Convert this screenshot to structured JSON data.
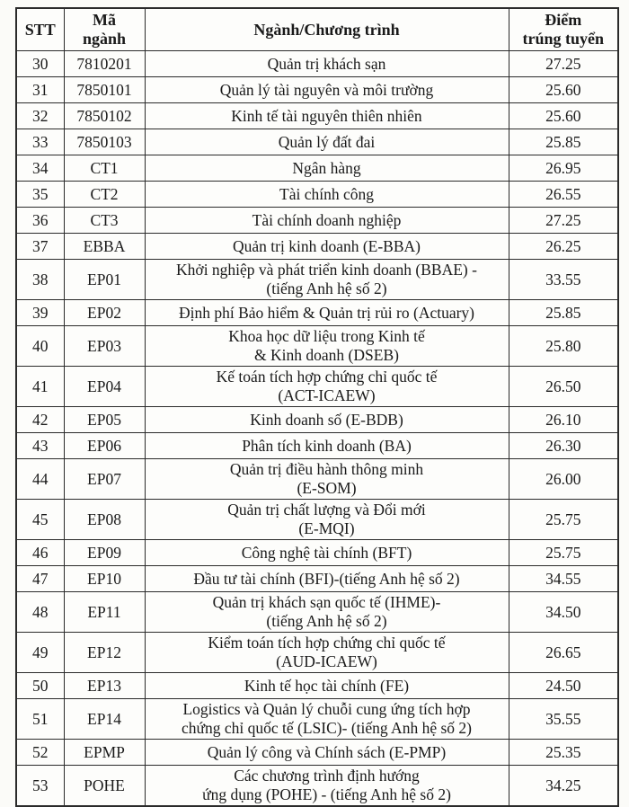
{
  "document": {
    "kind": "scanned admission scores table",
    "colors": {
      "text": "#1a1a1a",
      "border": "#2b2b2b",
      "paper": "#fbfbf8"
    }
  },
  "table": {
    "header": {
      "stt": "STT",
      "code": "Mã\nngành",
      "program": "Ngành/Chương trình",
      "score": "Điểm\ntrúng tuyển"
    },
    "rows": [
      {
        "stt": "30",
        "code": "7810201",
        "program": "Quản trị khách sạn",
        "score": "27.25"
      },
      {
        "stt": "31",
        "code": "7850101",
        "program": "Quản lý tài nguyên và môi trường",
        "score": "25.60"
      },
      {
        "stt": "32",
        "code": "7850102",
        "program": "Kinh tế tài nguyên thiên nhiên",
        "score": "25.60"
      },
      {
        "stt": "33",
        "code": "7850103",
        "program": "Quản lý đất đai",
        "score": "25.85"
      },
      {
        "stt": "34",
        "code": "CT1",
        "program": "Ngân hàng",
        "score": "26.95"
      },
      {
        "stt": "35",
        "code": "CT2",
        "program": "Tài chính công",
        "score": "26.55"
      },
      {
        "stt": "36",
        "code": "CT3",
        "program": "Tài chính doanh nghiệp",
        "score": "27.25"
      },
      {
        "stt": "37",
        "code": "EBBA",
        "program": "Quản trị kinh doanh (E-BBA)",
        "score": "26.25"
      },
      {
        "stt": "38",
        "code": "EP01",
        "program": "Khởi nghiệp và phát triển kinh doanh (BBAE) -\n(tiếng Anh hệ số 2)",
        "score": "33.55"
      },
      {
        "stt": "39",
        "code": "EP02",
        "program": "Định phí Bảo hiểm & Quản trị rủi ro (Actuary)",
        "score": "25.85"
      },
      {
        "stt": "40",
        "code": "EP03",
        "program": "Khoa học dữ liệu trong Kinh tế\n& Kinh doanh (DSEB)",
        "score": "25.80"
      },
      {
        "stt": "41",
        "code": "EP04",
        "program": "Kế toán tích hợp chứng chỉ quốc tế\n(ACT-ICAEW)",
        "score": "26.50"
      },
      {
        "stt": "42",
        "code": "EP05",
        "program": "Kinh doanh số (E-BDB)",
        "score": "26.10"
      },
      {
        "stt": "43",
        "code": "EP06",
        "program": "Phân tích kinh doanh (BA)",
        "score": "26.30"
      },
      {
        "stt": "44",
        "code": "EP07",
        "program": "Quản trị điều hành thông minh\n(E-SOM)",
        "score": "26.00"
      },
      {
        "stt": "45",
        "code": "EP08",
        "program": "Quản trị chất lượng và Đổi mới\n(E-MQI)",
        "score": "25.75"
      },
      {
        "stt": "46",
        "code": "EP09",
        "program": "Công nghệ tài chính (BFT)",
        "score": "25.75"
      },
      {
        "stt": "47",
        "code": "EP10",
        "program": "Đầu tư tài chính (BFI)-(tiếng Anh hệ số 2)",
        "score": "34.55"
      },
      {
        "stt": "48",
        "code": "EP11",
        "program": "Quản trị khách sạn quốc tế (IHME)-\n(tiếng Anh hệ số 2)",
        "score": "34.50"
      },
      {
        "stt": "49",
        "code": "EP12",
        "program": "Kiểm toán tích hợp chứng chỉ quốc tế\n(AUD-ICAEW)",
        "score": "26.65"
      },
      {
        "stt": "50",
        "code": "EP13",
        "program": "Kinh tế học tài chính (FE)",
        "score": "24.50"
      },
      {
        "stt": "51",
        "code": "EP14",
        "program": "Logistics và Quản lý chuỗi cung ứng tích hợp\nchứng chỉ quốc tế (LSIC)- (tiếng Anh hệ số 2)",
        "score": "35.55"
      },
      {
        "stt": "52",
        "code": "EPMP",
        "program": "Quản lý công và Chính sách (E-PMP)",
        "score": "25.35"
      },
      {
        "stt": "53",
        "code": "POHE",
        "program": "Các chương trình định hướng\nứng dụng (POHE) - (tiếng Anh hệ số 2)",
        "score": "34.25"
      }
    ]
  }
}
